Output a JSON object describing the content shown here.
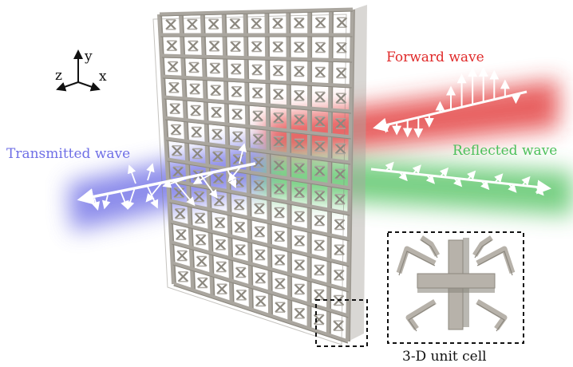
{
  "labels": {
    "forward": "Forward wave",
    "reflected": "Reflected wave",
    "transmitted": "Transmitted wave",
    "unit_cell": "3-D unit cell"
  },
  "axes": {
    "y": "y",
    "z": "z",
    "x": "x"
  },
  "colors": {
    "forward": "#e02a2a",
    "reflected": "#4cc05a",
    "transmitted": "#6f6fe6",
    "lattice": "#aaa69f",
    "lattice_dark": "#8c887f",
    "unit_cell_fill": "#b7b2aa",
    "outline": "#111111"
  },
  "lattice": {
    "rows": 13,
    "cols": 9
  },
  "icons": {
    "axis_triad": "axis-triad-icon",
    "wave_arrows": "wave-arrow-icon",
    "unit_cell": "unit-cell-icon"
  }
}
